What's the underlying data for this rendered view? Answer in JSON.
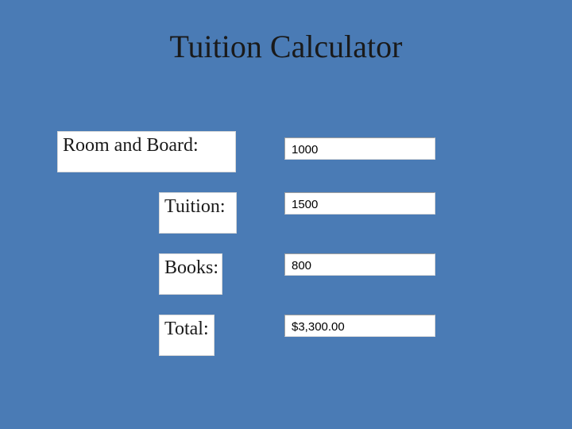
{
  "title": "Tuition Calculator",
  "background_color": "#4a7bb5",
  "label_box_bg": "#ffffff",
  "input_box_bg": "#ffffff",
  "title_fontsize": 40,
  "label_fontsize": 24,
  "input_fontsize": 15,
  "title_font": "Times New Roman",
  "label_font": "Times New Roman",
  "input_font": "Arial",
  "rows": {
    "room": {
      "label": "Room and Board:",
      "value": "1000"
    },
    "tuition": {
      "label": "Tuition:",
      "value": "1500"
    },
    "books": {
      "label": "Books:",
      "value": "800"
    },
    "total": {
      "label": "Total:",
      "value": "$3,300.00"
    }
  }
}
